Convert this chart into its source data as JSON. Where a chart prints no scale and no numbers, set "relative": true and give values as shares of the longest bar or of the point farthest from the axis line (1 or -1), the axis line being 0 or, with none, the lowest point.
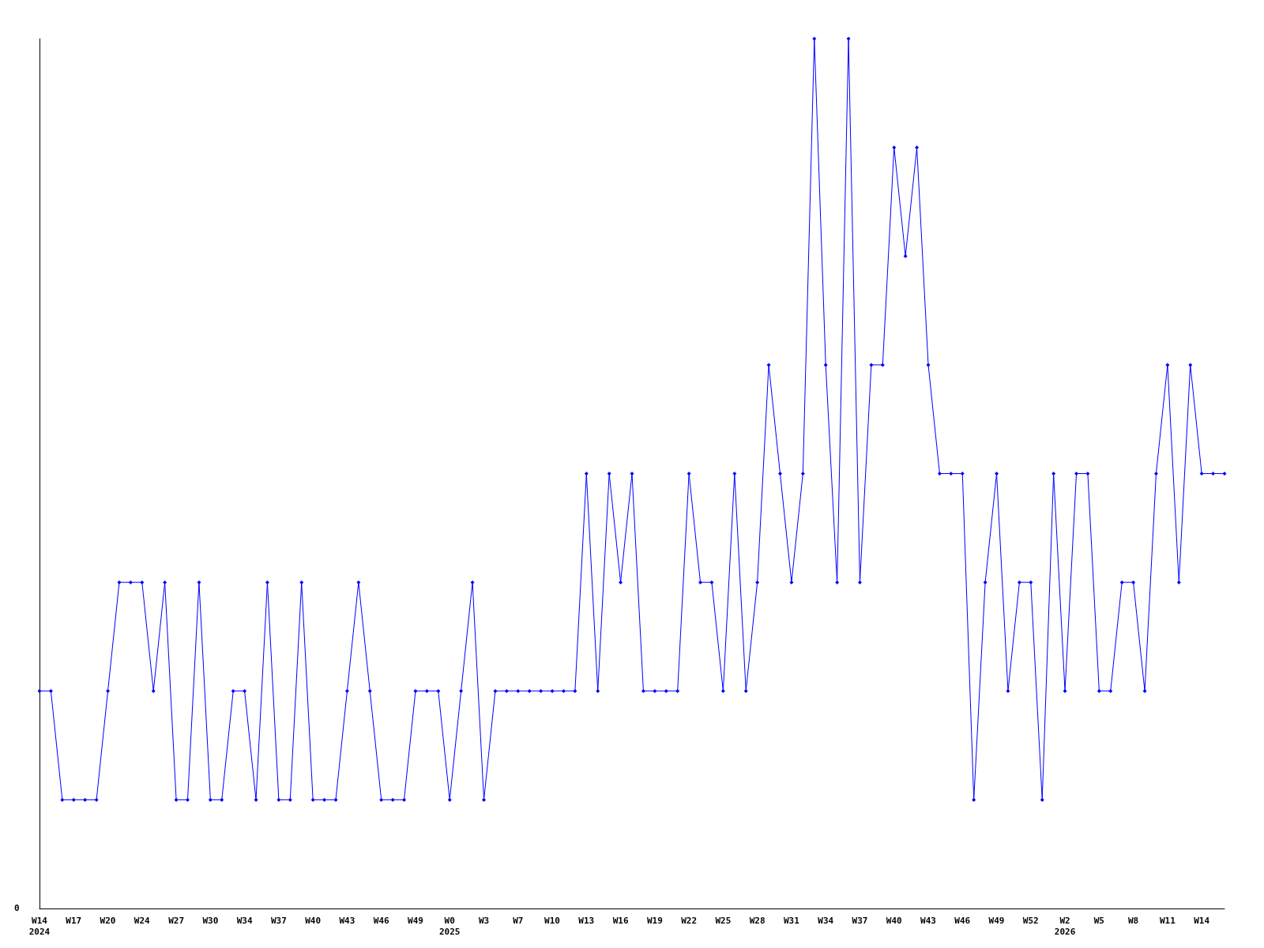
{
  "chart_data": {
    "type": "line",
    "relative": true,
    "marker": "diamond",
    "grid": false,
    "categories": [
      "W14\n2024",
      null,
      null,
      "W17",
      null,
      null,
      "W20",
      null,
      null,
      "W24",
      null,
      null,
      "W27",
      null,
      null,
      "W30",
      null,
      null,
      "W34",
      null,
      null,
      "W37",
      null,
      null,
      "W40",
      null,
      null,
      "W43",
      null,
      null,
      "W46",
      null,
      null,
      "W49",
      null,
      null,
      "W0\n2025",
      null,
      null,
      "W3",
      null,
      null,
      "W7",
      null,
      null,
      "W10",
      null,
      null,
      "W13",
      null,
      null,
      "W16",
      null,
      null,
      "W19",
      null,
      null,
      "W22",
      null,
      null,
      "W25",
      null,
      null,
      "W28",
      null,
      null,
      "W31",
      null,
      null,
      "W34",
      null,
      null,
      "W37",
      null,
      null,
      "W40",
      null,
      null,
      "W43",
      null,
      null,
      "W46",
      null,
      null,
      "W49",
      null,
      null,
      "W52",
      null,
      null,
      "W2\n2026",
      null,
      null,
      "W5",
      null,
      null,
      "W8",
      null,
      null,
      "W11",
      null,
      null,
      "W14",
      null,
      null
    ],
    "series": [
      {
        "color": "#0000ff",
        "values": [
          0.25,
          0.25,
          0.125,
          0.125,
          0.125,
          0.125,
          0.25,
          0.375,
          0.375,
          0.375,
          0.25,
          0.375,
          0.125,
          0.125,
          0.375,
          0.125,
          0.125,
          0.25,
          0.25,
          0.125,
          0.375,
          0.125,
          0.125,
          0.375,
          0.125,
          0.125,
          0.125,
          0.25,
          0.375,
          0.25,
          0.125,
          0.125,
          0.125,
          0.25,
          0.25,
          0.25,
          0.125,
          0.25,
          0.375,
          0.125,
          0.25,
          0.25,
          0.25,
          0.25,
          0.25,
          0.25,
          0.25,
          0.25,
          0.5,
          0.25,
          0.5,
          0.375,
          0.5,
          0.25,
          0.25,
          0.25,
          0.25,
          0.5,
          0.375,
          0.375,
          0.25,
          0.5,
          0.25,
          0.375,
          0.625,
          0.5,
          0.375,
          0.5,
          1,
          0.625,
          0.375,
          1,
          0.375,
          0.625,
          0.625,
          0.875,
          0.75,
          0.875,
          0.625,
          0.5,
          0.5,
          0.5,
          0.125,
          0.375,
          0.5,
          0.25,
          0.375,
          0.375,
          0.125,
          0.5,
          0.25,
          0.5,
          0.5,
          0.25,
          0.25,
          0.375,
          0.375,
          0.25,
          0.5,
          0.625,
          0.375,
          0.625,
          0.5,
          0.5,
          0.5
        ]
      }
    ],
    "annotations": [
      "0"
    ]
  }
}
